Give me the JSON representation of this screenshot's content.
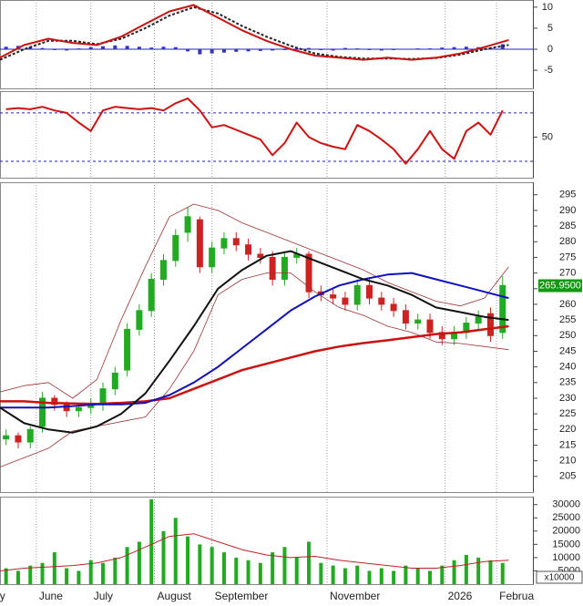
{
  "chart_data": [
    {
      "type": "line",
      "xlim": [
        0,
        176
      ],
      "ylim": [
        -9.3,
        11.7
      ],
      "yticks": [
        -5,
        0,
        5,
        10
      ],
      "baseline": 0,
      "baseline_color": "#2222cc",
      "series": [
        {
          "type": "bar",
          "color": "#3333cc",
          "x": [
            2,
            6,
            10,
            14,
            18,
            22,
            26,
            30,
            34,
            38,
            42,
            46,
            50,
            54,
            58,
            62,
            66,
            70,
            74,
            78,
            82,
            86,
            90,
            94,
            98,
            102,
            106,
            110,
            114,
            118,
            122,
            126,
            130,
            134,
            138,
            142,
            146,
            150,
            154,
            158,
            162,
            166
          ],
          "values": [
            0.6,
            0.8,
            0.5,
            0.3,
            -0.2,
            -0.3,
            0.2,
            0.5,
            0.7,
            0.9,
            0.8,
            0.6,
            0.4,
            0.6,
            0.5,
            -0.5,
            -1.2,
            -1,
            -0.8,
            -0.6,
            -0.5,
            -0.4,
            -0.3,
            -0.2,
            0.2,
            0.3,
            -0.2,
            -0.3,
            0.3,
            0.2,
            -0.2,
            -0.3,
            -0.2,
            0.1,
            0.2,
            0.2,
            0.4,
            0.5,
            0.6,
            0.5,
            0.4,
            1.2
          ]
        },
        {
          "color": "#222222",
          "dash": true,
          "x": [
            0,
            8,
            16,
            24,
            32,
            40,
            48,
            56,
            64,
            72,
            80,
            88,
            96,
            104,
            112,
            120,
            128,
            136,
            144,
            152,
            160,
            168
          ],
          "values": [
            -2.5,
            0,
            2,
            2,
            1.2,
            2.5,
            5,
            8,
            10,
            8.5,
            5.5,
            3,
            0.8,
            -1,
            -1.8,
            -2.2,
            -2.2,
            -2.3,
            -2.1,
            -1.3,
            0,
            1
          ]
        },
        {
          "color": "#cc1111",
          "x": [
            0,
            8,
            16,
            24,
            32,
            40,
            48,
            56,
            64,
            72,
            80,
            88,
            96,
            104,
            112,
            120,
            128,
            136,
            144,
            152,
            160,
            168
          ],
          "values": [
            -2,
            1,
            2.5,
            1.5,
            1,
            3,
            6,
            9,
            10.5,
            7.5,
            4.5,
            2,
            0,
            -1.5,
            -2,
            -2.5,
            -2,
            -2.5,
            -2,
            -1,
            0.5,
            2.2
          ]
        }
      ]
    },
    {
      "type": "line",
      "xlim": [
        0,
        176
      ],
      "ylim": [
        16.4,
        88
      ],
      "yticks": [
        50
      ],
      "ref_lines": [
        30,
        70
      ],
      "ref_color": "#2222aa",
      "series": [
        {
          "color": "#cc1111",
          "x": [
            2,
            6,
            10,
            14,
            18,
            22,
            26,
            30,
            34,
            38,
            42,
            46,
            50,
            54,
            58,
            62,
            66,
            70,
            74,
            78,
            82,
            86,
            90,
            94,
            98,
            102,
            106,
            110,
            114,
            118,
            122,
            126,
            130,
            134,
            138,
            142,
            146,
            150,
            154,
            158,
            162,
            166
          ],
          "values": [
            73,
            74,
            73,
            75,
            72,
            70,
            62,
            55,
            72,
            75,
            74,
            73,
            74,
            72,
            78,
            82,
            72,
            58,
            60,
            56,
            52,
            48,
            35,
            45,
            62,
            50,
            45,
            42,
            40,
            60,
            55,
            48,
            40,
            28,
            40,
            55,
            40,
            32,
            55,
            62,
            52,
            72
          ]
        }
      ]
    },
    {
      "type": "candlestick",
      "xlim": [
        0,
        176
      ],
      "ylim": [
        200,
        299
      ],
      "yticks": [
        205,
        210,
        215,
        220,
        225,
        230,
        235,
        240,
        245,
        250,
        255,
        260,
        265,
        270,
        275,
        280,
        285,
        290,
        295
      ],
      "up_color": "#22aa22",
      "down_color": "#cc2222",
      "x": [
        2,
        6,
        10,
        14,
        18,
        22,
        26,
        30,
        34,
        38,
        42,
        46,
        50,
        54,
        58,
        62,
        66,
        70,
        74,
        78,
        82,
        86,
        90,
        94,
        98,
        102,
        106,
        110,
        114,
        118,
        122,
        126,
        130,
        134,
        138,
        142,
        146,
        150,
        154,
        158,
        162,
        166
      ],
      "open": [
        217,
        218,
        216,
        221,
        230,
        228,
        226,
        227,
        228,
        233,
        239,
        252,
        258,
        268,
        274,
        283,
        287,
        272,
        278,
        281,
        279,
        276,
        275,
        268,
        275,
        276,
        264,
        263,
        262,
        260,
        266,
        262,
        260,
        258,
        254,
        255,
        251,
        249,
        251,
        254,
        257,
        251
      ],
      "high": [
        220,
        219,
        221,
        232,
        231,
        229,
        228,
        230,
        235,
        240,
        254,
        260,
        270,
        276,
        284,
        291,
        288,
        280,
        283,
        283,
        281,
        278,
        277,
        277,
        278,
        277,
        266,
        265,
        264,
        268,
        268,
        264,
        262,
        260,
        257,
        257,
        253,
        253,
        256,
        258,
        259,
        269
      ],
      "low": [
        215,
        214,
        214,
        219,
        226,
        224,
        224,
        225,
        226,
        231,
        237,
        250,
        256,
        266,
        272,
        280,
        270,
        270,
        276,
        277,
        274,
        273,
        266,
        266,
        273,
        262,
        261,
        260,
        258,
        258,
        260,
        258,
        256,
        252,
        252,
        249,
        247,
        247,
        249,
        252,
        248,
        249
      ],
      "close": [
        218,
        216,
        220,
        230,
        228,
        226,
        227,
        228,
        233,
        238,
        252,
        258,
        268,
        274,
        282,
        288,
        272,
        278,
        281,
        279,
        276,
        275,
        268,
        275,
        276,
        264,
        263,
        262,
        260,
        266,
        262,
        260,
        258,
        254,
        255,
        251,
        249,
        251,
        254,
        256,
        250,
        266
      ],
      "last_price": {
        "value": 265.95,
        "label": "265.9500"
      },
      "last_color": "#119911",
      "series": [
        {
          "color": "#993333",
          "width": 0.8,
          "x": [
            0,
            8,
            16,
            24,
            32,
            40,
            48,
            56,
            64,
            72,
            80,
            88,
            96,
            104,
            112,
            120,
            128,
            136,
            144,
            152,
            160,
            168
          ],
          "values": [
            232,
            234,
            235,
            230,
            236,
            255,
            272,
            288,
            292,
            290,
            286,
            283,
            280,
            277,
            274,
            271,
            267,
            264,
            261,
            259.5,
            262,
            272
          ]
        },
        {
          "color": "#993333",
          "width": 0.8,
          "x": [
            0,
            8,
            16,
            24,
            32,
            40,
            48,
            56,
            64,
            72,
            80,
            88,
            96,
            104,
            112,
            120,
            128,
            136,
            144,
            152,
            160,
            168
          ],
          "values": [
            208,
            211,
            214,
            219.5,
            221,
            222.5,
            224,
            233,
            245,
            263,
            268,
            270,
            270,
            264,
            259,
            256.5,
            253,
            251,
            248,
            247.5,
            246.5,
            245.5
          ]
        },
        {
          "color": "#cc1111",
          "width": 2.5,
          "x": [
            0,
            8,
            16,
            24,
            32,
            40,
            48,
            56,
            64,
            72,
            80,
            88,
            96,
            104,
            112,
            120,
            128,
            136,
            144,
            152,
            160,
            168
          ],
          "values": [
            229,
            229,
            228.5,
            228.3,
            228.2,
            228.5,
            229,
            230,
            233,
            236,
            239,
            241,
            243,
            245,
            246.5,
            247.6,
            248.5,
            249.5,
            250.5,
            251,
            252,
            253
          ]
        },
        {
          "color": "#1111bb",
          "width": 2,
          "x": [
            0,
            8,
            16,
            24,
            32,
            40,
            48,
            56,
            64,
            72,
            80,
            88,
            96,
            104,
            112,
            120,
            128,
            136,
            144,
            152,
            160,
            168
          ],
          "values": [
            227,
            227,
            227,
            227.5,
            228,
            228,
            228.5,
            231,
            235,
            240,
            246,
            252,
            258,
            262.5,
            266,
            268,
            269.5,
            270,
            268,
            266,
            264,
            262
          ]
        },
        {
          "color": "#111111",
          "width": 2,
          "x": [
            0,
            8,
            16,
            24,
            32,
            40,
            48,
            56,
            64,
            72,
            80,
            88,
            96,
            104,
            112,
            120,
            128,
            136,
            144,
            152,
            160,
            168
          ],
          "values": [
            227,
            222,
            220,
            219,
            221,
            225,
            231.5,
            242,
            253,
            265,
            271,
            275.5,
            277,
            274,
            271,
            268,
            266,
            263,
            259,
            257.5,
            256,
            255
          ]
        }
      ]
    },
    {
      "type": "bar",
      "xlim": [
        0,
        176
      ],
      "ylim": [
        0,
        33000
      ],
      "yticks": [
        5000,
        10000,
        15000,
        20000,
        25000,
        30000
      ],
      "unit_label": "x10000",
      "xticks": [
        {
          "value": -1,
          "label": "y"
        },
        {
          "value": 12,
          "label": "June"
        },
        {
          "value": 30,
          "label": "July"
        },
        {
          "value": 51,
          "label": "August"
        },
        {
          "value": 70,
          "label": "September"
        },
        {
          "value": 108,
          "label": "November"
        },
        {
          "value": 147,
          "label": "2026"
        },
        {
          "value": 164,
          "label": "Februa"
        }
      ],
      "series": [
        {
          "type": "bar",
          "color": "#22aa22",
          "x": [
            2,
            6,
            10,
            14,
            18,
            22,
            26,
            30,
            34,
            38,
            42,
            46,
            50,
            54,
            58,
            62,
            66,
            70,
            74,
            78,
            82,
            86,
            90,
            94,
            98,
            102,
            106,
            110,
            114,
            118,
            122,
            126,
            130,
            134,
            138,
            142,
            146,
            150,
            154,
            158,
            162,
            166
          ],
          "values": [
            6000,
            5000,
            7000,
            8000,
            12000,
            6000,
            5000,
            9000,
            8000,
            10000,
            14000,
            16000,
            32000,
            20000,
            25000,
            18000,
            15000,
            14000,
            12000,
            10000,
            9000,
            8000,
            12000,
            14000,
            10000,
            16000,
            8000,
            7000,
            6000,
            7000,
            5000,
            6000,
            5000,
            7000,
            6000,
            5000,
            7000,
            9000,
            11000,
            10000,
            9000,
            8000
          ]
        },
        {
          "color": "#bb2222",
          "width": 1,
          "x": [
            0,
            8,
            16,
            24,
            32,
            40,
            48,
            56,
            64,
            72,
            80,
            88,
            96,
            104,
            112,
            120,
            128,
            136,
            144,
            152,
            160,
            168
          ],
          "values": [
            5000,
            6000,
            6500,
            7000,
            8000,
            10000,
            14000,
            18000,
            19000,
            16000,
            13000,
            11000,
            10000,
            10500,
            9000,
            8000,
            7000,
            6000,
            6000,
            7000,
            8500,
            9000
          ]
        }
      ]
    }
  ]
}
